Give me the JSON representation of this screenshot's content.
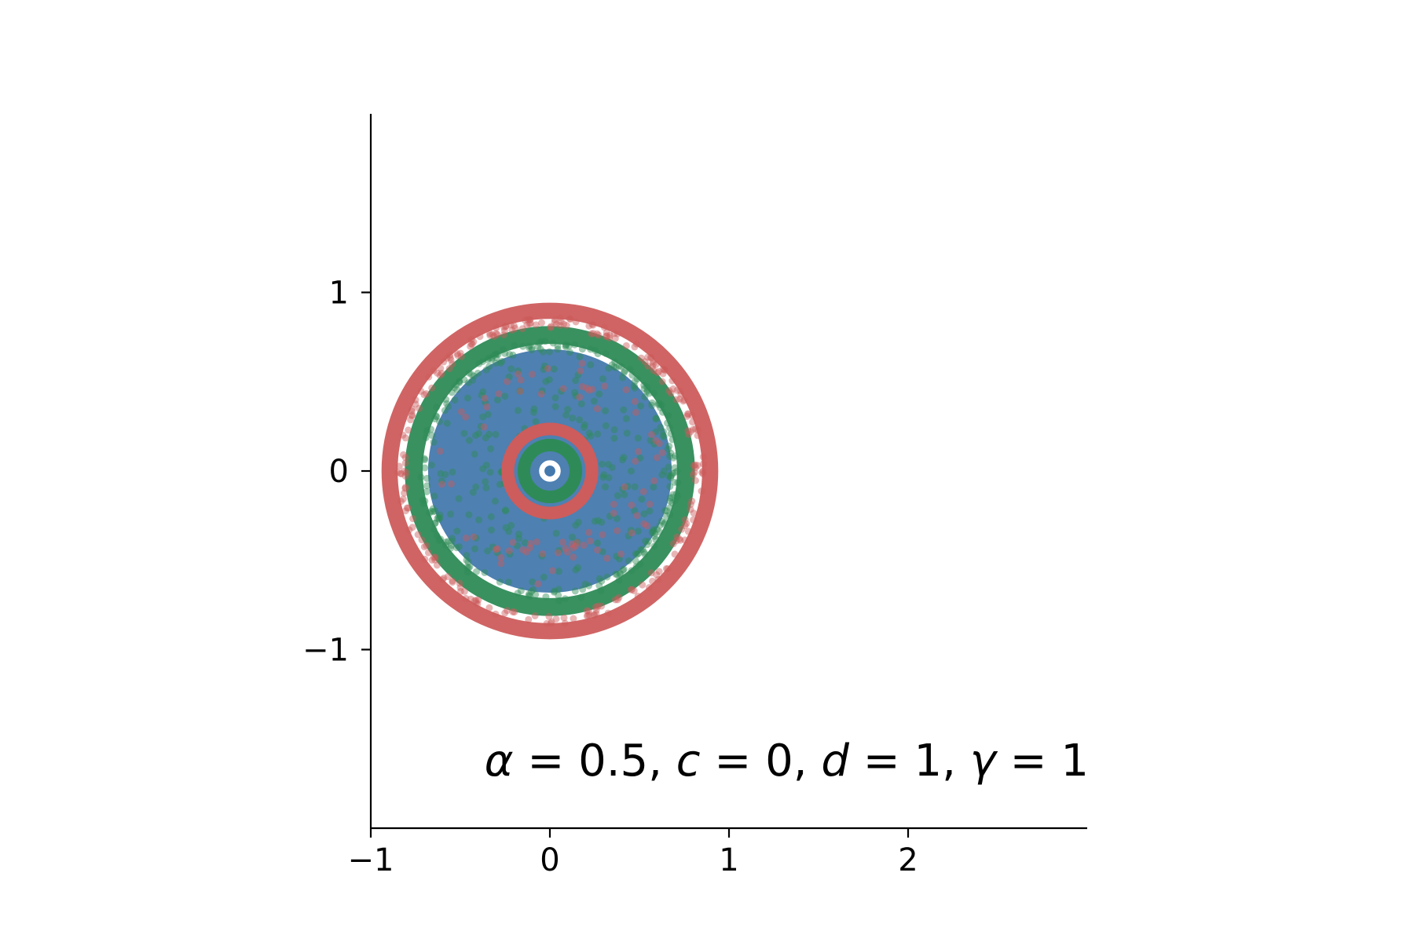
{
  "chart_data": {
    "type": "scatter",
    "title": "",
    "xlabel": "",
    "ylabel": "",
    "xlim": [
      -1,
      3
    ],
    "ylim": [
      -2,
      2
    ],
    "x_ticks": [
      -1,
      0,
      1,
      2
    ],
    "y_ticks": [
      -1,
      0,
      1
    ],
    "x_tick_labels": [
      "−1",
      "0",
      "1",
      "2"
    ],
    "y_tick_labels": [
      "−1",
      "0",
      "1"
    ],
    "grid": false,
    "spines": [
      "left",
      "bottom"
    ],
    "center": [
      0,
      0
    ],
    "series": [
      {
        "color": "#4479ad",
        "shape": "filled-disk",
        "radius_range": [
          0,
          0.68
        ]
      },
      {
        "color": "#2e8b57",
        "shape": "ring",
        "radius_range": [
          0.71,
          0.81
        ]
      },
      {
        "color": "#cd5c5c",
        "shape": "ring",
        "radius_range": [
          0.85,
          0.94
        ]
      },
      {
        "color": "#cd5c5c",
        "shape": "ring",
        "radius_range": [
          0.2,
          0.27
        ]
      },
      {
        "color": "#2e8b57",
        "shape": "ring",
        "radius_range": [
          0.11,
          0.18
        ]
      },
      {
        "color": "#ffffff",
        "shape": "ring",
        "radius_range": [
          0.03,
          0.06
        ]
      },
      {
        "color": "#4479ad",
        "shape": "filled-disk",
        "radius_range": [
          0,
          0.03
        ]
      }
    ],
    "annotation": {
      "text": "α = 0.5, c = 0, d = 1, γ = 1",
      "alpha_symbol": "α",
      "alpha_value": "= 0.5,",
      "c_symbol": "c",
      "c_value": "= 0,",
      "d_symbol": "d",
      "d_value": "= 1,",
      "gamma_symbol": "γ",
      "gamma_value": "= 1",
      "placement": "bottom-right"
    }
  }
}
